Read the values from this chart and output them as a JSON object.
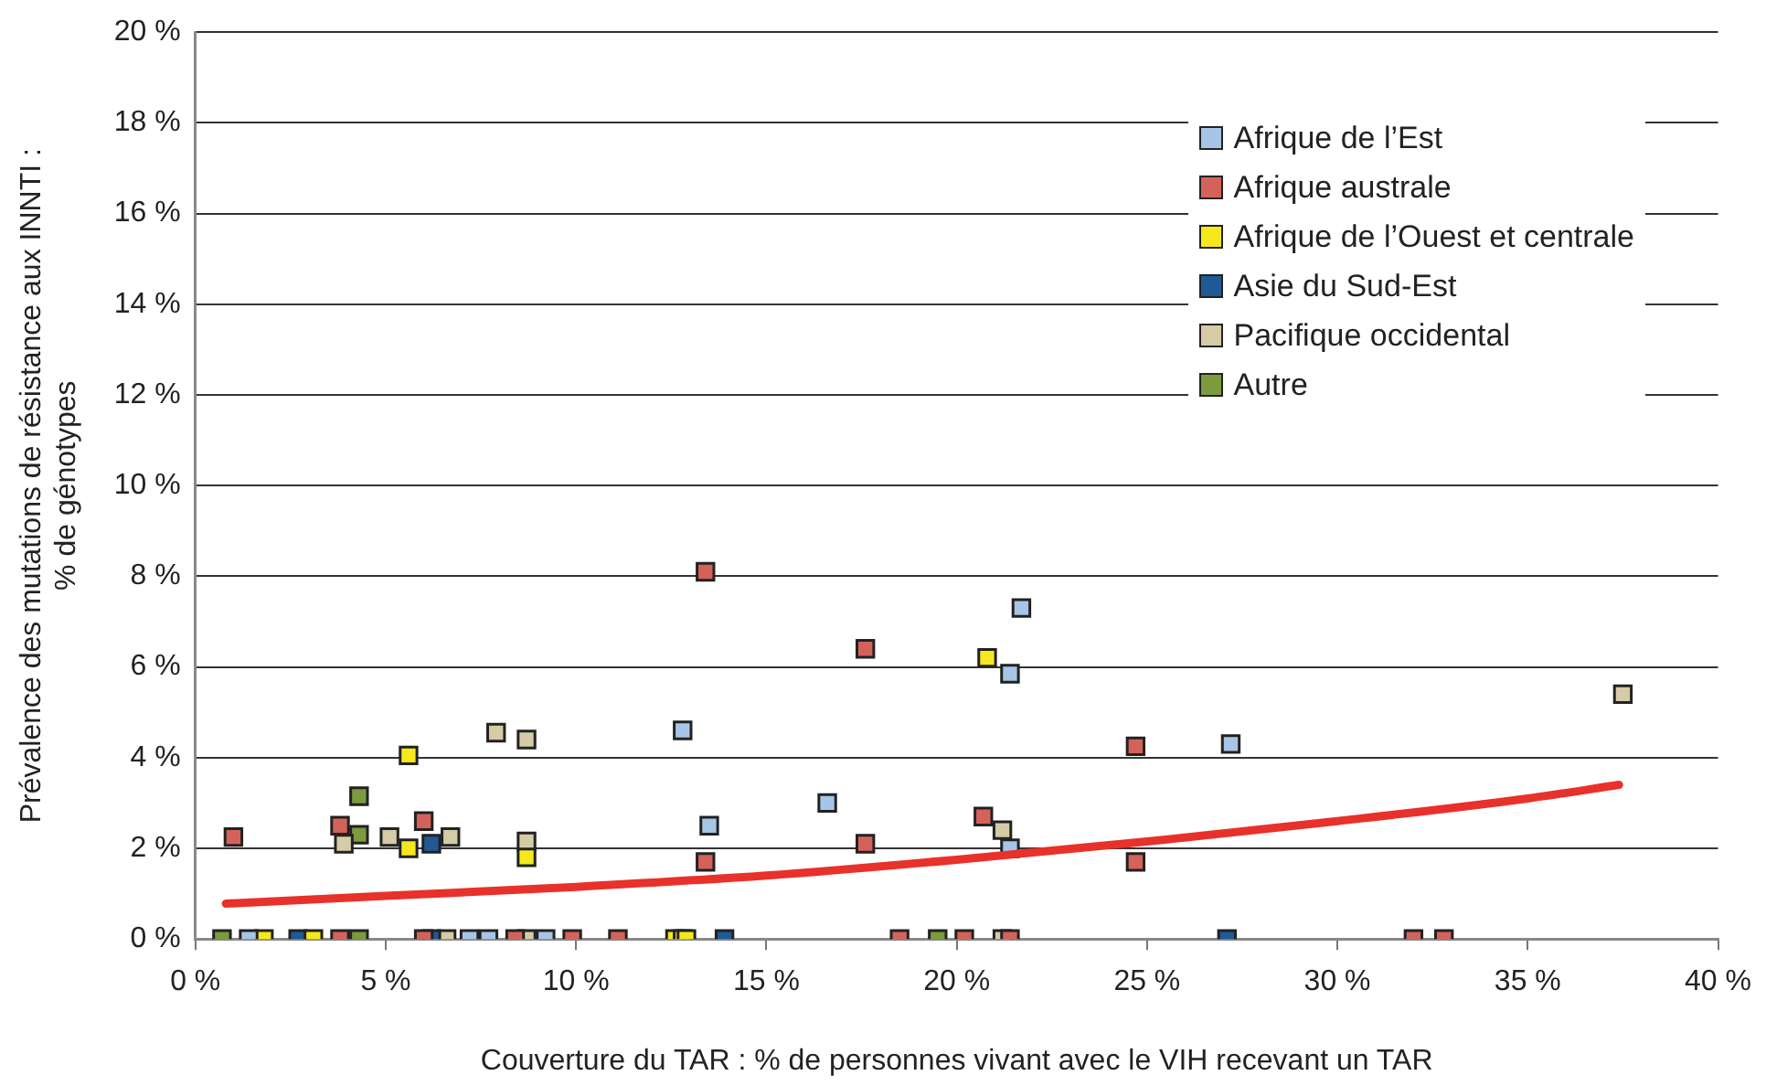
{
  "chart_data": {
    "type": "scatter",
    "xlabel": "Couverture du TAR : % de personnes vivant avec le VIH recevant un TAR",
    "ylabel": "Prévalence des mutations de résistance aux INNTI :\n% de génotypes",
    "xlim": [
      0,
      40
    ],
    "ylim": [
      0,
      20
    ],
    "xticks": [
      {
        "value": 0,
        "label": "0 %"
      },
      {
        "value": 5,
        "label": "5 %"
      },
      {
        "value": 10,
        "label": "10 %"
      },
      {
        "value": 15,
        "label": "15 %"
      },
      {
        "value": 20,
        "label": "20 %"
      },
      {
        "value": 25,
        "label": "25 %"
      },
      {
        "value": 30,
        "label": "30 %"
      },
      {
        "value": 35,
        "label": "35 %"
      },
      {
        "value": 40,
        "label": "40 %"
      }
    ],
    "yticks": [
      {
        "value": 0,
        "label": "0 %"
      },
      {
        "value": 2,
        "label": "2 %"
      },
      {
        "value": 4,
        "label": "4 %"
      },
      {
        "value": 6,
        "label": "6 %"
      },
      {
        "value": 8,
        "label": "8 %"
      },
      {
        "value": 10,
        "label": "10 %"
      },
      {
        "value": 12,
        "label": "12 %"
      },
      {
        "value": 14,
        "label": "14 %"
      },
      {
        "value": 16,
        "label": "16 %"
      },
      {
        "value": 18,
        "label": "18 %"
      },
      {
        "value": 20,
        "label": "20 %"
      }
    ],
    "grid": "y",
    "legend": "top right",
    "marker": "square",
    "series": [
      {
        "name": "Afrique de l’Est",
        "color": "#a7c5e6",
        "x": [
          12.8,
          13.5,
          16.6,
          21.7,
          21.4,
          21.4,
          27.2,
          1.4,
          7.2,
          7.7,
          9.2
        ],
        "values": [
          4.6,
          2.5,
          3.0,
          7.3,
          5.85,
          2.0,
          4.3,
          0,
          0,
          0,
          0
        ]
      },
      {
        "name": "Afrique australe",
        "color": "#d5625a",
        "x": [
          1.0,
          3.8,
          6.0,
          13.4,
          17.6,
          17.6,
          13.4,
          20.7,
          24.7,
          24.7,
          3.8,
          6.0,
          8.4,
          9.9,
          11.1,
          18.5,
          20.2,
          21.4,
          32.0,
          32.8
        ],
        "values": [
          2.25,
          2.5,
          2.6,
          8.1,
          6.4,
          2.1,
          1.7,
          2.7,
          4.25,
          1.7,
          0,
          0,
          0,
          0,
          0,
          0,
          0,
          0,
          0,
          0
        ]
      },
      {
        "name": "Afrique de l’Ouest et centrale",
        "color": "#f5e81c",
        "x": [
          5.6,
          5.6,
          8.7,
          20.8,
          1.8,
          3.1,
          12.6,
          12.8,
          12.9
        ],
        "values": [
          4.05,
          2.0,
          1.8,
          6.2,
          0,
          0,
          0,
          0,
          0
        ]
      },
      {
        "name": "Asie du Sud-Est",
        "color": "#1f5a96",
        "x": [
          6.2,
          2.7,
          6.2,
          13.9,
          27.1
        ],
        "values": [
          2.1,
          0,
          0,
          0,
          0
        ]
      },
      {
        "name": "Pacifique occidental",
        "color": "#d5cba6",
        "x": [
          7.9,
          8.7,
          3.9,
          5.1,
          6.7,
          8.7,
          21.2,
          37.5,
          6.6,
          8.7,
          21.2
        ],
        "values": [
          4.55,
          4.4,
          2.1,
          2.25,
          2.25,
          2.15,
          2.4,
          5.4,
          0,
          0,
          0
        ]
      },
      {
        "name": "Autre",
        "color": "#7c9a3e",
        "x": [
          4.3,
          4.3,
          0.7,
          4.3,
          19.5
        ],
        "values": [
          3.15,
          2.3,
          0,
          0,
          0
        ]
      },
      {
        "type": "line",
        "color": "#e8312a",
        "marker": "none",
        "line_style": "solid",
        "x": [
          0.8,
          5,
          10,
          15,
          20,
          25,
          30,
          35,
          37.4
        ],
        "values": [
          0.78,
          0.95,
          1.15,
          1.4,
          1.75,
          2.15,
          2.6,
          3.1,
          3.4
        ]
      }
    ]
  }
}
